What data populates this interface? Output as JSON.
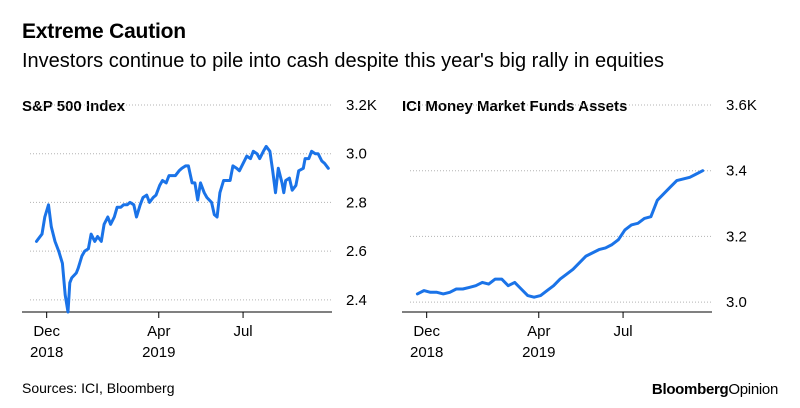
{
  "header": {
    "title": "Extreme Caution",
    "subtitle": "Investors continue to pile into cash despite this year's big rally in equities"
  },
  "footer": {
    "source": "Sources: ICI, Bloomberg",
    "brand_bold": "Bloomberg",
    "brand_light": "Opinion"
  },
  "colors": {
    "line": "#1a73e8",
    "grid": "#b3b3b3",
    "axis": "#000000"
  },
  "chart_data": [
    {
      "type": "line",
      "title": "S&P 500 Index",
      "xlabel": "",
      "ylabel": "",
      "ylim": [
        2.35,
        3.2
      ],
      "grid": true,
      "y_ticks": [
        "2.4",
        "2.6",
        "2.8",
        "3.0",
        "3.2K"
      ],
      "y_tick_values": [
        2.4,
        2.6,
        2.8,
        3.0,
        3.2
      ],
      "x_ticks": [
        {
          "line1": "Dec",
          "line2": "2018",
          "x": "2018-12-01"
        },
        {
          "line1": "Apr",
          "line2": "2019",
          "x": "2019-04-01"
        },
        {
          "line1": "Jul",
          "line2": "",
          "x": "2019-07-01"
        }
      ],
      "xlim": [
        "2018-11-13",
        "2019-10-05"
      ],
      "series": [
        {
          "x": [
            "2018-11-20",
            "2018-11-22",
            "2018-11-26",
            "2018-11-29",
            "2018-12-03",
            "2018-12-06",
            "2018-12-10",
            "2018-12-14",
            "2018-12-18",
            "2018-12-21",
            "2018-12-24",
            "2018-12-26",
            "2018-12-28",
            "2019-01-02",
            "2019-01-04",
            "2019-01-08",
            "2019-01-11",
            "2019-01-15",
            "2019-01-18",
            "2019-01-22",
            "2019-01-25",
            "2019-01-29",
            "2019-02-01",
            "2019-02-05",
            "2019-02-08",
            "2019-02-12",
            "2019-02-15",
            "2019-02-19",
            "2019-02-22",
            "2019-02-26",
            "2019-03-01",
            "2019-03-05",
            "2019-03-08",
            "2019-03-12",
            "2019-03-15",
            "2019-03-19",
            "2019-03-22",
            "2019-03-26",
            "2019-03-29",
            "2019-04-02",
            "2019-04-05",
            "2019-04-09",
            "2019-04-12",
            "2019-04-16",
            "2019-04-19",
            "2019-04-23",
            "2019-04-26",
            "2019-04-30",
            "2019-05-03",
            "2019-05-07",
            "2019-05-10",
            "2019-05-13",
            "2019-05-16",
            "2019-05-20",
            "2019-05-23",
            "2019-05-28",
            "2019-05-31",
            "2019-06-03",
            "2019-06-06",
            "2019-06-10",
            "2019-06-13",
            "2019-06-17",
            "2019-06-20",
            "2019-06-24",
            "2019-06-27",
            "2019-07-01",
            "2019-07-05",
            "2019-07-09",
            "2019-07-12",
            "2019-07-16",
            "2019-07-19",
            "2019-07-23",
            "2019-07-26",
            "2019-07-30",
            "2019-08-02",
            "2019-08-05",
            "2019-08-08",
            "2019-08-12",
            "2019-08-14",
            "2019-08-16",
            "2019-08-20",
            "2019-08-23",
            "2019-08-27",
            "2019-08-30",
            "2019-09-04",
            "2019-09-06",
            "2019-09-10",
            "2019-09-13",
            "2019-09-17",
            "2019-09-20",
            "2019-09-24",
            "2019-09-27",
            "2019-10-01"
          ],
          "values": [
            2.64,
            2.65,
            2.67,
            2.74,
            2.79,
            2.7,
            2.64,
            2.6,
            2.55,
            2.42,
            2.35,
            2.47,
            2.49,
            2.51,
            2.53,
            2.58,
            2.6,
            2.61,
            2.67,
            2.64,
            2.66,
            2.64,
            2.71,
            2.74,
            2.71,
            2.74,
            2.78,
            2.78,
            2.79,
            2.79,
            2.8,
            2.79,
            2.74,
            2.79,
            2.82,
            2.83,
            2.8,
            2.82,
            2.83,
            2.87,
            2.89,
            2.88,
            2.91,
            2.91,
            2.91,
            2.93,
            2.94,
            2.95,
            2.95,
            2.88,
            2.88,
            2.81,
            2.88,
            2.84,
            2.82,
            2.8,
            2.75,
            2.74,
            2.84,
            2.89,
            2.89,
            2.89,
            2.95,
            2.94,
            2.93,
            2.96,
            2.99,
            2.98,
            3.01,
            3.0,
            2.98,
            3.01,
            3.03,
            3.01,
            2.93,
            2.84,
            2.94,
            2.88,
            2.84,
            2.89,
            2.9,
            2.85,
            2.87,
            2.93,
            2.94,
            2.98,
            2.98,
            3.01,
            3.0,
            3.0,
            2.97,
            2.96,
            2.94
          ]
        }
      ]
    },
    {
      "type": "line",
      "title": "ICI Money Market Funds Assets",
      "xlabel": "",
      "ylabel": "",
      "ylim": [
        2.97,
        3.6
      ],
      "grid": true,
      "y_ticks": [
        "3.0",
        "3.2",
        "3.4",
        "3.6K"
      ],
      "y_tick_values": [
        3.0,
        3.2,
        3.4,
        3.6
      ],
      "x_ticks": [
        {
          "line1": "Dec",
          "line2": "2018",
          "x": "2018-12-01"
        },
        {
          "line1": "Apr",
          "line2": "2019",
          "x": "2019-04-01"
        },
        {
          "line1": "Jul",
          "line2": "",
          "x": "2019-07-01"
        }
      ],
      "xlim": [
        "2018-11-13",
        "2019-10-05"
      ],
      "series": [
        {
          "x": [
            "2018-11-21",
            "2018-11-28",
            "2018-12-05",
            "2018-12-12",
            "2018-12-19",
            "2018-12-26",
            "2019-01-02",
            "2019-01-09",
            "2019-01-16",
            "2019-01-23",
            "2019-01-30",
            "2019-02-06",
            "2019-02-13",
            "2019-02-20",
            "2019-02-27",
            "2019-03-06",
            "2019-03-13",
            "2019-03-20",
            "2019-03-27",
            "2019-04-03",
            "2019-04-10",
            "2019-04-17",
            "2019-04-24",
            "2019-05-01",
            "2019-05-08",
            "2019-05-15",
            "2019-05-22",
            "2019-05-29",
            "2019-06-05",
            "2019-06-12",
            "2019-06-19",
            "2019-06-26",
            "2019-07-03",
            "2019-07-10",
            "2019-07-17",
            "2019-07-24",
            "2019-07-31",
            "2019-08-07",
            "2019-08-14",
            "2019-08-21",
            "2019-08-28",
            "2019-09-04",
            "2019-09-11",
            "2019-09-18",
            "2019-09-25"
          ],
          "values": [
            3.025,
            3.035,
            3.03,
            3.03,
            3.025,
            3.03,
            3.04,
            3.04,
            3.045,
            3.05,
            3.06,
            3.055,
            3.07,
            3.07,
            3.05,
            3.06,
            3.04,
            3.02,
            3.015,
            3.02,
            3.035,
            3.05,
            3.07,
            3.085,
            3.1,
            3.12,
            3.14,
            3.15,
            3.16,
            3.165,
            3.175,
            3.19,
            3.22,
            3.235,
            3.24,
            3.255,
            3.26,
            3.31,
            3.33,
            3.35,
            3.37,
            3.375,
            3.38,
            3.39,
            3.4
          ]
        }
      ]
    }
  ]
}
